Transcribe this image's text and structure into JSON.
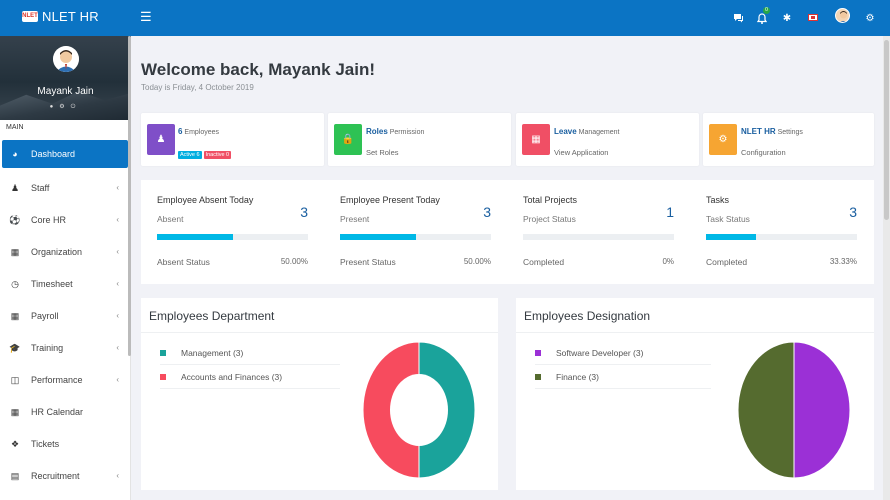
{
  "app": {
    "logo_badge": "NLET",
    "title": "NLET HR"
  },
  "topbar": {
    "icons": [
      "menu-icon",
      "chat-icon",
      "bell-icon",
      "puzzle-icon",
      "flag-icon",
      "user-avatar",
      "gear-icon"
    ],
    "bell_count": "0"
  },
  "profile": {
    "name": "Mayank Jain"
  },
  "sidebar": {
    "section_label": "MAIN",
    "items": [
      {
        "label": "Dashboard",
        "icon": "dashboard-icon",
        "active": true,
        "chevron": false
      },
      {
        "label": "Staff",
        "icon": "user-icon",
        "chevron": true
      },
      {
        "label": "Core HR",
        "icon": "ball-icon",
        "chevron": true
      },
      {
        "label": "Organization",
        "icon": "building-icon",
        "chevron": true
      },
      {
        "label": "Timesheet",
        "icon": "clock-icon",
        "chevron": true
      },
      {
        "label": "Payroll",
        "icon": "calculator-icon",
        "chevron": true
      },
      {
        "label": "Training",
        "icon": "graduation-icon",
        "chevron": true
      },
      {
        "label": "Performance",
        "icon": "cube-icon",
        "chevron": true
      },
      {
        "label": "HR Calendar",
        "icon": "calendar-icon",
        "chevron": false
      },
      {
        "label": "Tickets",
        "icon": "ticket-icon",
        "chevron": false
      },
      {
        "label": "Recruitment",
        "icon": "newspaper-icon",
        "chevron": true
      }
    ]
  },
  "main": {
    "welcome": "Welcome back, Mayank Jain!",
    "today": "Today is Friday, 4 October 2019",
    "cards": [
      {
        "title_bold": "6",
        "title_rest": "Employees",
        "badges": [
          "Active 6",
          "Inactive 0"
        ],
        "sub": "",
        "color": "#7f4fc8",
        "icon": "user-icon"
      },
      {
        "title_bold": "Roles",
        "title_rest": "Permission",
        "sub": "Set Roles",
        "color": "#2ec254",
        "icon": "lock-icon"
      },
      {
        "title_bold": "Leave",
        "title_rest": "Management",
        "sub": "View Application",
        "color": "#f04f65",
        "icon": "calendar-icon"
      },
      {
        "title_bold": "NLET HR",
        "title_rest": "Settings",
        "sub": "Configuration",
        "color": "#f6a532",
        "icon": "gear-icon"
      }
    ],
    "stats": [
      {
        "title": "Employee Absent Today",
        "label": "Absent",
        "value": "3",
        "progress": 0.5,
        "status_label": "Absent Status",
        "percent": "50.00%"
      },
      {
        "title": "Employee Present Today",
        "label": "Present",
        "value": "3",
        "progress": 0.5,
        "status_label": "Present Status",
        "percent": "50.00%"
      },
      {
        "title": "Total Projects",
        "label": "Project Status",
        "value": "1",
        "progress": 0,
        "status_label": "Completed",
        "percent": "0%"
      },
      {
        "title": "Tasks",
        "label": "Task Status",
        "value": "3",
        "progress": 0.3333,
        "status_label": "Completed",
        "percent": "33.33%"
      }
    ],
    "department": {
      "title": "Employees Department",
      "legend": [
        "Management (3)",
        "Accounts and Finances (3)"
      ]
    },
    "designation": {
      "title": "Employees Designation",
      "legend": [
        "Software Developer (3)",
        "Finance (3)"
      ]
    }
  },
  "chart_data": [
    {
      "type": "pie",
      "categories": [
        "Management",
        "Accounts and Finances"
      ],
      "values": [
        3,
        3
      ],
      "colors": [
        "#1aa39b",
        "#f74b5e"
      ],
      "donut": true,
      "title": "Employees Department"
    },
    {
      "type": "pie",
      "categories": [
        "Software Developer",
        "Finance"
      ],
      "values": [
        3,
        3
      ],
      "colors": [
        "#9b30d6",
        "#556b2f"
      ],
      "donut": false,
      "title": "Employees Designation"
    }
  ]
}
